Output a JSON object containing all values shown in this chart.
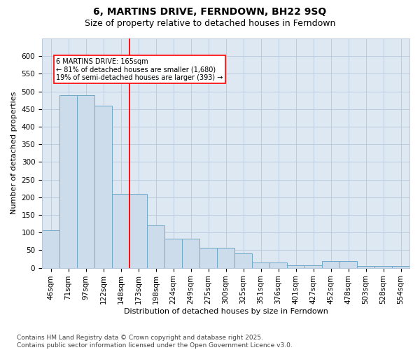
{
  "title": "6, MARTINS DRIVE, FERNDOWN, BH22 9SQ",
  "subtitle": "Size of property relative to detached houses in Ferndown",
  "xlabel": "Distribution of detached houses by size in Ferndown",
  "ylabel": "Number of detached properties",
  "footer": "Contains HM Land Registry data © Crown copyright and database right 2025.\nContains public sector information licensed under the Open Government Licence v3.0.",
  "categories": [
    "46sqm",
    "71sqm",
    "97sqm",
    "122sqm",
    "148sqm",
    "173sqm",
    "198sqm",
    "224sqm",
    "249sqm",
    "275sqm",
    "300sqm",
    "325sqm",
    "351sqm",
    "376sqm",
    "401sqm",
    "427sqm",
    "452sqm",
    "478sqm",
    "503sqm",
    "528sqm",
    "554sqm"
  ],
  "values": [
    107,
    490,
    490,
    460,
    210,
    210,
    120,
    83,
    83,
    57,
    57,
    40,
    15,
    15,
    8,
    8,
    20,
    20,
    5,
    5,
    5
  ],
  "bar_color": "#ccdcea",
  "bar_edge_color": "#6fa8c8",
  "red_line_index": 4.5,
  "annotation_text": "6 MARTINS DRIVE: 165sqm\n← 81% of detached houses are smaller (1,680)\n19% of semi-detached houses are larger (393) →",
  "ylim": [
    0,
    650
  ],
  "yticks": [
    0,
    50,
    100,
    150,
    200,
    250,
    300,
    350,
    400,
    450,
    500,
    550,
    600
  ],
  "background_color": "#ffffff",
  "plot_bg_color": "#dde8f2",
  "grid_color": "#b8c8da",
  "title_fontsize": 10,
  "subtitle_fontsize": 9,
  "axis_label_fontsize": 8,
  "tick_fontsize": 7.5,
  "footer_fontsize": 6.5
}
